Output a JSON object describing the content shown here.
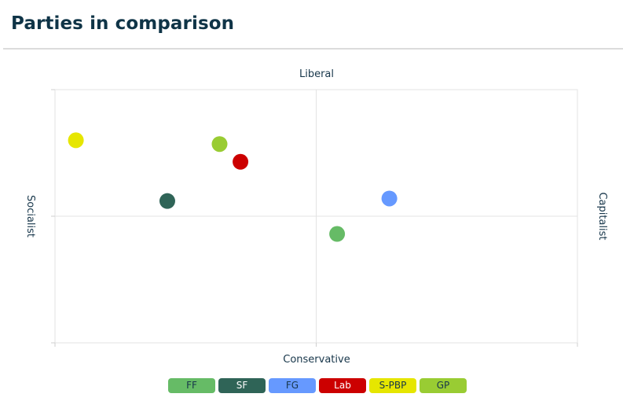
{
  "page": {
    "title": "Parties in comparison"
  },
  "chart_data": {
    "type": "scatter",
    "axes": {
      "top": "Liberal",
      "bottom": "Conservative",
      "left": "Socialist",
      "right": "Capitalist"
    },
    "xlim": [
      -10,
      10
    ],
    "ylim": [
      -10,
      10
    ],
    "grid": true,
    "legend_placement": "bottom-center",
    "series": [
      {
        "name": "FF",
        "x": 0.8,
        "y": -1.4,
        "color": "#66bb66",
        "text_color": "#17364a"
      },
      {
        "name": "SF",
        "x": -5.7,
        "y": 1.2,
        "color": "#2f6457",
        "text_color": "#ffffff"
      },
      {
        "name": "FG",
        "x": 2.8,
        "y": 1.4,
        "color": "#6699ff",
        "text_color": "#17364a"
      },
      {
        "name": "Lab",
        "x": -2.9,
        "y": 4.3,
        "color": "#cc0000",
        "text_color": "#ffffff"
      },
      {
        "name": "S-PBP",
        "x": -9.2,
        "y": 6.0,
        "color": "#e6e600",
        "text_color": "#17364a"
      },
      {
        "name": "GP",
        "x": -3.7,
        "y": 5.7,
        "color": "#99cc33",
        "text_color": "#17364a"
      }
    ]
  }
}
